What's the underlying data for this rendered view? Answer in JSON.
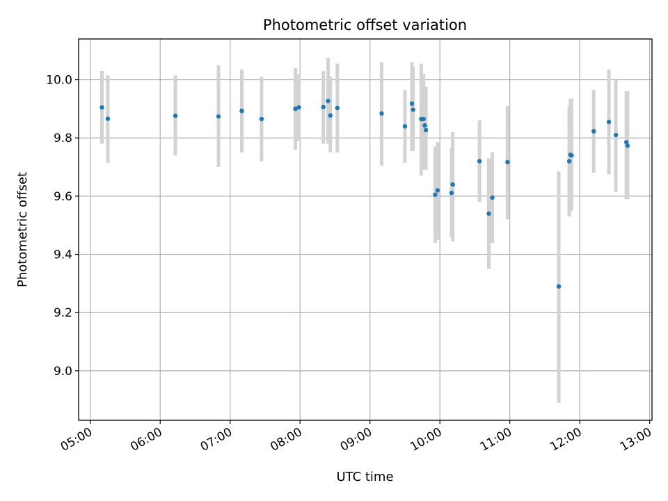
{
  "chart_data": {
    "type": "scatter",
    "title": "Photometric offset variation",
    "xlabel": "UTC time",
    "ylabel": "Photometric offset",
    "x_unit": "UTC time (HH:MM)",
    "xlim": [
      "04:50",
      "13:02"
    ],
    "ylim": [
      8.83,
      10.14
    ],
    "x_ticks": [
      "05:00",
      "06:00",
      "07:00",
      "08:00",
      "09:00",
      "10:00",
      "11:00",
      "12:00",
      "13:00"
    ],
    "y_ticks": [
      "9.0",
      "9.2",
      "9.4",
      "9.6",
      "9.8",
      "10.0"
    ],
    "grid": true,
    "colors": {
      "points": "#1f77b4",
      "errorbars": "#d3d3d3",
      "grid": "#b0b0b0"
    },
    "series": [
      {
        "x": [
          "05:10",
          "05:15",
          "06:13",
          "06:50",
          "07:10",
          "07:27",
          "07:56",
          "07:59",
          "08:20",
          "08:24",
          "08:26",
          "08:32",
          "09:10",
          "09:30",
          "09:36",
          "09:37",
          "09:44",
          "09:46",
          "09:47",
          "09:48",
          "09:56",
          "09:58",
          "10:10",
          "10:11",
          "10:34",
          "10:42",
          "10:45",
          "10:58",
          "11:42",
          "11:51",
          "11:52",
          "11:53",
          "12:12",
          "12:25",
          "12:31",
          "12:40",
          "12:41"
        ],
        "y": [
          9.905,
          9.866,
          9.876,
          9.874,
          9.893,
          9.865,
          9.9,
          9.905,
          9.906,
          9.927,
          9.877,
          9.903,
          9.884,
          9.84,
          9.918,
          9.897,
          9.865,
          9.865,
          9.843,
          9.827,
          9.605,
          9.62,
          9.611,
          9.64,
          9.72,
          9.54,
          9.595,
          9.717,
          9.29,
          9.72,
          9.742,
          9.74,
          9.823,
          9.855,
          9.81,
          9.785,
          9.773
        ],
        "yerr_low": [
          9.78,
          9.715,
          9.74,
          9.7,
          9.75,
          9.72,
          9.76,
          9.79,
          9.78,
          9.78,
          9.75,
          9.75,
          9.705,
          9.715,
          9.755,
          9.755,
          9.67,
          9.69,
          9.71,
          9.69,
          9.44,
          9.45,
          9.46,
          9.445,
          9.58,
          9.35,
          9.44,
          9.52,
          8.89,
          9.53,
          9.55,
          9.55,
          9.68,
          9.675,
          9.615,
          9.59,
          9.59
        ],
        "yerr_high": [
          10.03,
          10.015,
          10.015,
          10.05,
          10.035,
          10.01,
          10.04,
          10.02,
          10.03,
          10.075,
          10.01,
          10.055,
          10.06,
          9.965,
          10.06,
          10.045,
          10.055,
          10.02,
          9.97,
          9.975,
          9.77,
          9.785,
          9.765,
          9.82,
          9.86,
          9.73,
          9.75,
          9.91,
          9.685,
          9.91,
          9.935,
          9.935,
          9.965,
          10.035,
          10.0,
          9.96,
          9.96
        ]
      }
    ]
  }
}
